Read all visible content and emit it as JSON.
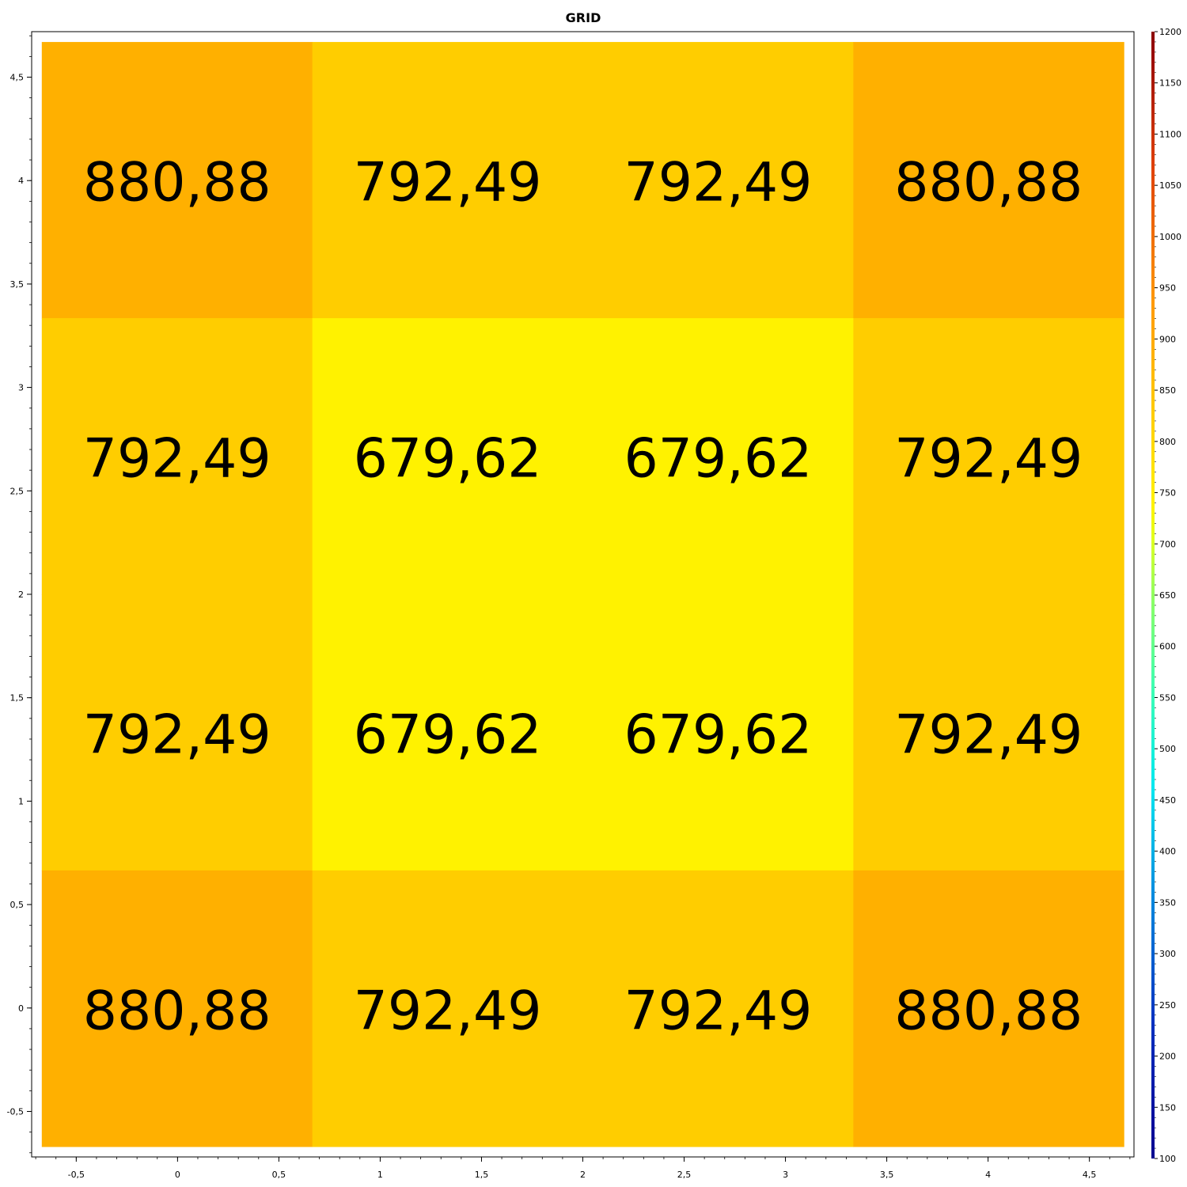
{
  "chart_data": {
    "type": "heatmap",
    "title": "GRID",
    "xlabel": "",
    "ylabel": "",
    "xlim": [
      -0.72,
      4.72
    ],
    "ylim": [
      -0.72,
      4.72
    ],
    "x_ticks": [
      "-0,5",
      "0",
      "0,5",
      "1",
      "1,5",
      "2",
      "2,5",
      "3",
      "3,5",
      "4",
      "4,5"
    ],
    "y_ticks": [
      "-0,5",
      "0",
      "0,5",
      "1",
      "1,5",
      "2",
      "2,5",
      "3",
      "3,5",
      "4",
      "4,5"
    ],
    "grid": false,
    "cells_x_range": [
      -0.67,
      4.67
    ],
    "cells_y_range": [
      -0.67,
      4.67
    ],
    "rows_top_to_bottom": [
      [
        "880,88",
        "792,49",
        "792,49",
        "880,88"
      ],
      [
        "792,49",
        "679,62",
        "679,62",
        "792,49"
      ],
      [
        "792,49",
        "679,62",
        "679,62",
        "792,49"
      ],
      [
        "880,88",
        "792,49",
        "792,49",
        "880,88"
      ]
    ],
    "values_top_to_bottom": [
      [
        880.88,
        792.49,
        792.49,
        880.88
      ],
      [
        792.49,
        679.62,
        679.62,
        792.49
      ],
      [
        792.49,
        679.62,
        679.62,
        792.49
      ],
      [
        880.88,
        792.49,
        792.49,
        880.88
      ]
    ],
    "colorbar": {
      "min": 100,
      "max": 1200,
      "placement": "right",
      "ticks": [
        "100",
        "150",
        "200",
        "250",
        "300",
        "350",
        "400",
        "450",
        "500",
        "550",
        "600",
        "650",
        "700",
        "750",
        "800",
        "850",
        "900",
        "950",
        "1000",
        "1050",
        "1100",
        "1150",
        "1200"
      ]
    },
    "colors": {
      "880.88": "#ffb000",
      "792.49": "#ffcd00",
      "679.62": "#fff200"
    }
  }
}
